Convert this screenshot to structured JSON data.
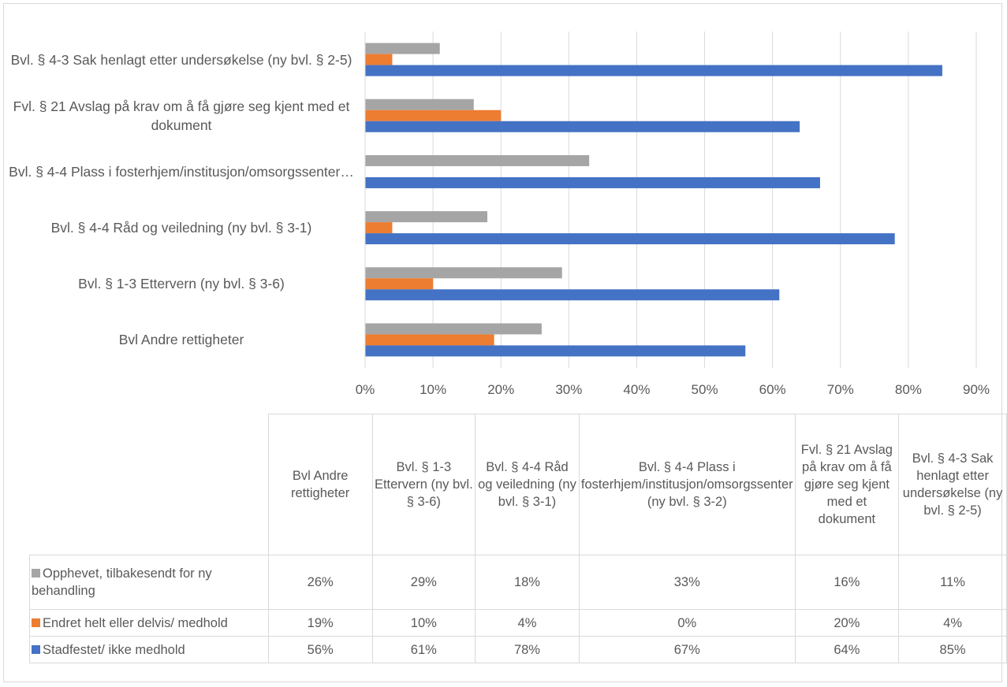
{
  "chart_data": {
    "type": "bar",
    "orientation": "horizontal",
    "categories": [
      "Bvl Andre rettigheter",
      "Bvl. § 1-3 Ettervern (ny bvl. § 3-6)",
      "Bvl. § 4-4 Råd og veiledning (ny bvl. § 3-1)",
      "Bvl. § 4-4 Plass i fosterhjem/institusjon/omsorgssenter (ny bvl. § 3-2)",
      "Fvl. § 21 Avslag på krav om å få gjøre seg kjent med et dokument",
      "Bvl. § 4-3 Sak henlagt etter undersøkelse (ny bvl. § 2-5)"
    ],
    "axis_category_labels": [
      "Bvl Andre rettigheter",
      "Bvl. § 1-3 Ettervern (ny bvl. § 3-6)",
      "Bvl. § 4-4 Råd og veiledning (ny bvl. § 3-1)",
      "Bvl. § 4-4 Plass i fosterhjem/institusjon/omsorgssenter…",
      "Fvl. § 21 Avslag på krav om å få gjøre seg kjent med et dokument",
      "Bvl. § 4-3 Sak henlagt etter undersøkelse (ny bvl. § 2-5)"
    ],
    "series": [
      {
        "name": "Opphevet, tilbakesendt for ny behandling",
        "color": "#a5a5a5",
        "values": [
          26,
          29,
          18,
          33,
          16,
          11
        ],
        "value_labels": [
          "26%",
          "29%",
          "18%",
          "33%",
          "16%",
          "11%"
        ]
      },
      {
        "name": "Endret helt eller delvis/ medhold",
        "color": "#ed7d31",
        "values": [
          19,
          10,
          4,
          0,
          20,
          4
        ],
        "value_labels": [
          "19%",
          "10%",
          "4%",
          "0%",
          "20%",
          "4%"
        ]
      },
      {
        "name": "Stadfestet/ ikke medhold",
        "color": "#4472c4",
        "values": [
          56,
          61,
          78,
          67,
          64,
          85
        ],
        "value_labels": [
          "56%",
          "61%",
          "78%",
          "67%",
          "64%",
          "85%"
        ]
      }
    ],
    "xlim": [
      0,
      90
    ],
    "xticks": [
      {
        "value": 0,
        "label": "0%"
      },
      {
        "value": 10,
        "label": "10%"
      },
      {
        "value": 20,
        "label": "20%"
      },
      {
        "value": 30,
        "label": "30%"
      },
      {
        "value": 40,
        "label": "40%"
      },
      {
        "value": 50,
        "label": "50%"
      },
      {
        "value": 60,
        "label": "60%"
      },
      {
        "value": 70,
        "label": "70%"
      },
      {
        "value": 80,
        "label": "80%"
      },
      {
        "value": 90,
        "label": "90%"
      }
    ],
    "grid": true,
    "data_table": true
  }
}
